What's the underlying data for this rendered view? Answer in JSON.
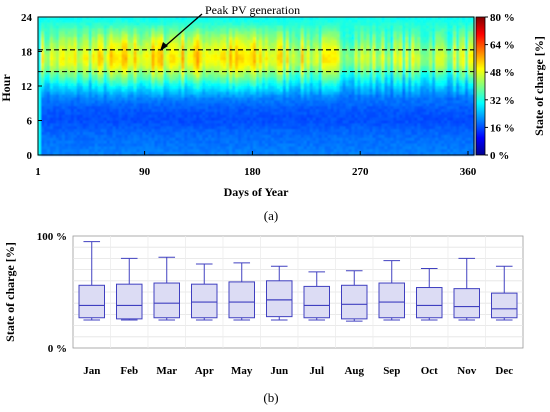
{
  "chart_data": [
    {
      "type": "heatmap",
      "title": "",
      "xlabel": "Days of Year",
      "ylabel": "Hour",
      "xlim": [
        1,
        365
      ],
      "ylim": [
        0,
        24
      ],
      "x_ticks": [
        "1",
        "90",
        "180",
        "270",
        "360"
      ],
      "y_ticks": [
        "0",
        "6",
        "12",
        "18",
        "24"
      ],
      "colorbar": {
        "label": "State of charge [%]",
        "range": [
          0,
          80
        ],
        "ticks": [
          "0 %",
          "16 %",
          "32 %",
          "48 %",
          "64 %",
          "80 %"
        ],
        "colormap": [
          "#00008f",
          "#0000ff",
          "#0080ff",
          "#00ffff",
          "#80ff80",
          "#ffff00",
          "#ff8000",
          "#ff0000",
          "#800000"
        ]
      },
      "hourly_soc_profile": {
        "hours": [
          0,
          2,
          4,
          6,
          8,
          10,
          12,
          13,
          14,
          15,
          16,
          17,
          18,
          19,
          20,
          21,
          22,
          24
        ],
        "soc_percent": [
          20,
          19,
          18,
          16,
          17,
          20,
          28,
          33,
          38,
          43,
          47,
          48,
          46,
          44,
          41,
          38,
          35,
          30
        ]
      },
      "highlight_band_hours": [
        14.5,
        18.3
      ],
      "annotation": "Peak PV generation",
      "caption": "(a)"
    },
    {
      "type": "box",
      "title": "",
      "xlabel": "",
      "ylabel": "State of charge [%]",
      "ylim": [
        0,
        100
      ],
      "y_ticks": [
        "0 %",
        "100 %"
      ],
      "categories": [
        "Jan",
        "Feb",
        "Mar",
        "Apr",
        "May",
        "Jun",
        "Jul",
        "Aug",
        "Sep",
        "Oct",
        "Nov",
        "Dec"
      ],
      "boxes": [
        {
          "min": 25,
          "q1": 27,
          "median": 38,
          "q3": 56,
          "max": 95
        },
        {
          "min": 25,
          "q1": 26,
          "median": 38,
          "q3": 57,
          "max": 80
        },
        {
          "min": 25,
          "q1": 27,
          "median": 40,
          "q3": 58,
          "max": 81
        },
        {
          "min": 25,
          "q1": 27,
          "median": 41,
          "q3": 57,
          "max": 75
        },
        {
          "min": 25,
          "q1": 27,
          "median": 41,
          "q3": 59,
          "max": 76
        },
        {
          "min": 25,
          "q1": 28,
          "median": 43,
          "q3": 60,
          "max": 73
        },
        {
          "min": 25,
          "q1": 27,
          "median": 38,
          "q3": 55,
          "max": 68
        },
        {
          "min": 24,
          "q1": 26,
          "median": 39,
          "q3": 56,
          "max": 69
        },
        {
          "min": 25,
          "q1": 27,
          "median": 41,
          "q3": 58,
          "max": 78
        },
        {
          "min": 25,
          "q1": 27,
          "median": 38,
          "q3": 54,
          "max": 71
        },
        {
          "min": 25,
          "q1": 27,
          "median": 37,
          "q3": 53,
          "max": 80
        },
        {
          "min": 25,
          "q1": 27,
          "median": 35,
          "q3": 49,
          "max": 73
        }
      ],
      "box_color": "#4040c0",
      "box_fill": "#dcdcf4",
      "grid": true,
      "caption": "(b)"
    }
  ]
}
